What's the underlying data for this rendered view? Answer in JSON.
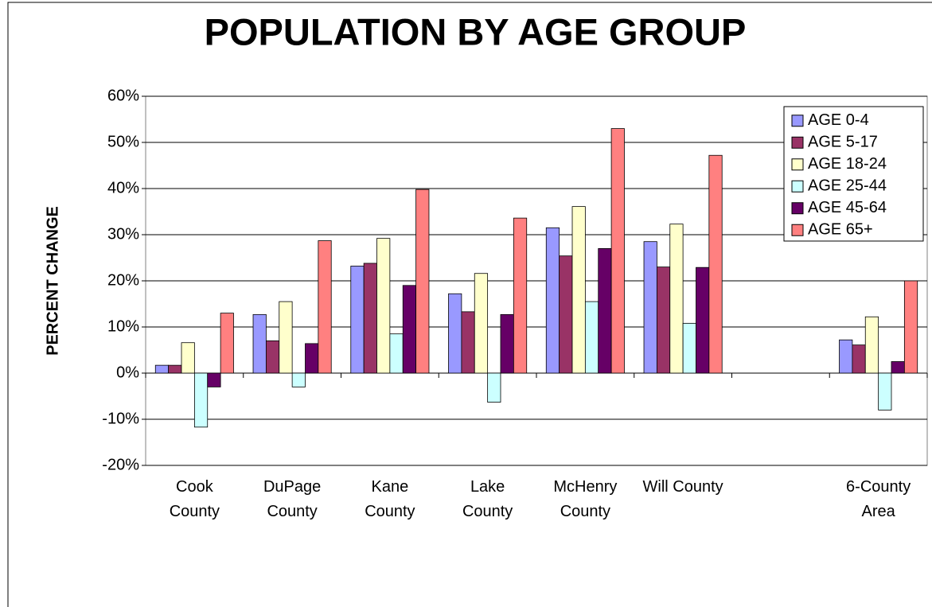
{
  "chart_data": {
    "type": "bar",
    "title": "POPULATION BY AGE GROUP",
    "y_label": "PERCENT CHANGE",
    "categories": [
      "Cook County",
      "DuPage County",
      "Kane County",
      "Lake County",
      "McHenry County",
      "Will County",
      null,
      "6-County Area"
    ],
    "series": [
      {
        "name": "AGE 0-4",
        "color": "#9999ff",
        "values": [
          1.7,
          12.7,
          23.2,
          17.2,
          31.5,
          28.5,
          null,
          7.2
        ]
      },
      {
        "name": "AGE 5-17",
        "color": "#993366",
        "values": [
          1.7,
          7,
          23.8,
          13.3,
          25.4,
          23,
          null,
          6.1
        ]
      },
      {
        "name": "AGE 18-24",
        "color": "#ffffcc",
        "values": [
          6.6,
          15.5,
          29.2,
          21.6,
          36.1,
          32.3,
          null,
          12.2
        ]
      },
      {
        "name": "AGE 25-44",
        "color": "#ccffff",
        "values": [
          -11.7,
          -3,
          8.5,
          -6.3,
          15.5,
          10.8,
          null,
          -8
        ]
      },
      {
        "name": "AGE 45-64",
        "color": "#660066",
        "values": [
          -3,
          6.4,
          19,
          12.7,
          27,
          22.9,
          null,
          2.5
        ]
      },
      {
        "name": "AGE 65+",
        "color": "#ff8080",
        "values": [
          13,
          28.7,
          39.8,
          33.6,
          53,
          47.2,
          null,
          20
        ]
      }
    ],
    "ylim": [
      -20,
      60
    ],
    "yticks": [
      {
        "value": -20,
        "label": "-20%"
      },
      {
        "value": -10,
        "label": "-10%"
      },
      {
        "value": 0,
        "label": "0%"
      },
      {
        "value": 10,
        "label": "10%"
      },
      {
        "value": 20,
        "label": "20%"
      },
      {
        "value": 30,
        "label": "30%"
      },
      {
        "value": 40,
        "label": "40%"
      },
      {
        "value": 50,
        "label": "50%"
      },
      {
        "value": 60,
        "label": "60%"
      }
    ],
    "grid": true,
    "legend": "top-right"
  }
}
